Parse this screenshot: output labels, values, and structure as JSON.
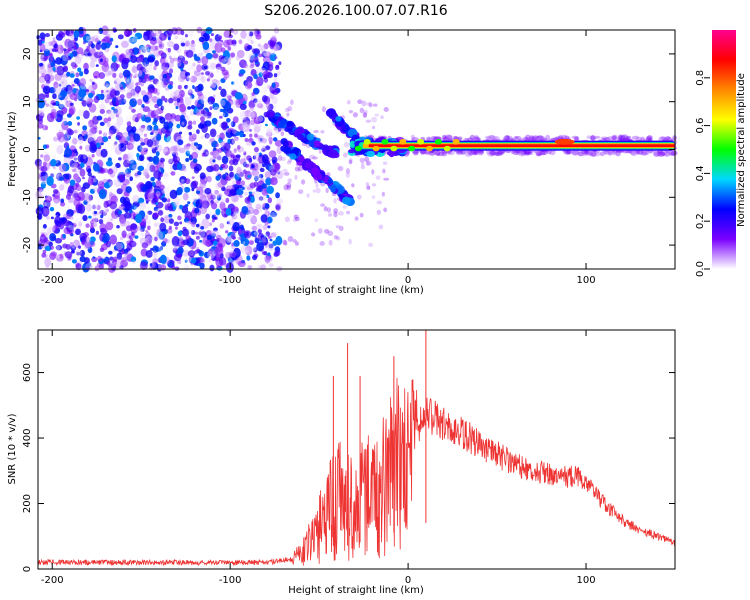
{
  "title": "S206.2026.100.07.07.R16",
  "chart_data": [
    {
      "type": "heatmap",
      "xlabel": "Height of straight line (km)",
      "ylabel": "Frequency (Hz)",
      "xlim": [
        -208,
        150
      ],
      "ylim": [
        -25,
        25
      ],
      "xticks": [
        -200,
        -100,
        0,
        100
      ],
      "yticks": [
        -20,
        -10,
        0,
        10,
        20
      ],
      "colorbar": {
        "label": "Normalized spectral amplitude",
        "range": [
          0.0,
          1.0
        ],
        "ticks": [
          0.0,
          0.2,
          0.4,
          0.6,
          0.8
        ],
        "tick_labels": [
          "0.0",
          "0.2",
          "0.4",
          "0.6",
          "0.8"
        ],
        "colors": [
          "#ffffff",
          "#7a00ff",
          "#0000ff",
          "#00d8ff",
          "#00ff00",
          "#ffff00",
          "#ff8800",
          "#ff0000",
          "#ff0090"
        ]
      },
      "features": {
        "noise_region_x": [
          -208,
          -72
        ],
        "carrier_start_x": -30,
        "carrier_end_x": 150,
        "carrier_freq_hz": 0.8,
        "carrier_amplitude": 0.85,
        "branch_upper": {
          "x": [
            -78,
            -40
          ],
          "freq_hz": [
            7,
            -1
          ]
        },
        "branch_lower": {
          "x": [
            -70,
            -32
          ],
          "freq_hz": [
            1,
            -11
          ]
        },
        "branch_mid": {
          "x": [
            -45,
            -25
          ],
          "freq_hz": [
            8,
            1
          ]
        }
      }
    },
    {
      "type": "line",
      "xlabel": "Height of straight line (km)",
      "ylabel": "SNR (10 * v/v)",
      "xlim": [
        -208,
        150
      ],
      "ylim": [
        0,
        730
      ],
      "xticks": [
        -200,
        -100,
        0,
        100
      ],
      "yticks": [
        0,
        200,
        400,
        600
      ],
      "series": [
        {
          "name": "SNR",
          "color": "#ee3333",
          "x": [
            -208,
            -180,
            -150,
            -120,
            -90,
            -75,
            -65,
            -60,
            -55,
            -50,
            -45,
            -40,
            -35,
            -30,
            -25,
            -20,
            -15,
            -10,
            -5,
            0,
            5,
            10,
            15,
            20,
            30,
            40,
            50,
            60,
            70,
            80,
            90,
            95,
            100,
            110,
            120,
            130,
            140,
            150
          ],
          "y": [
            20,
            20,
            20,
            20,
            20,
            22,
            30,
            60,
            110,
            160,
            200,
            260,
            240,
            230,
            300,
            250,
            330,
            350,
            400,
            370,
            430,
            470,
            460,
            440,
            420,
            380,
            350,
            320,
            300,
            290,
            280,
            285,
            265,
            200,
            150,
            120,
            100,
            80
          ]
        }
      ],
      "spikes": [
        {
          "x": -42,
          "y": 590
        },
        {
          "x": -34,
          "y": 690
        },
        {
          "x": -27,
          "y": 590
        },
        {
          "x": -8,
          "y": 650
        },
        {
          "x": 10,
          "y": 730
        }
      ]
    }
  ]
}
